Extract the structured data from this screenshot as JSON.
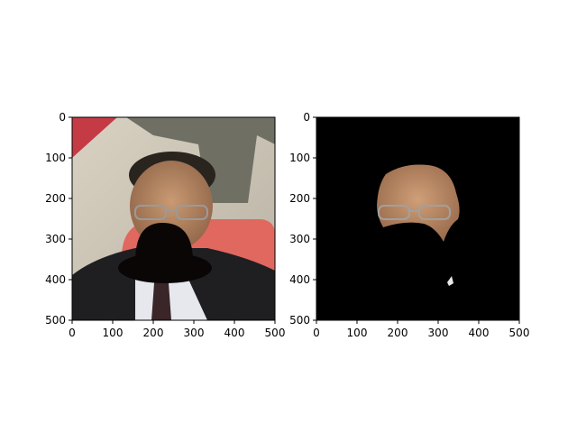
{
  "figure": {
    "background": "#ffffff",
    "axis_color": "#000000"
  },
  "panels": [
    {
      "name": "left-panel",
      "content": "photo of man in suit with black hat shape covering lower face",
      "x_ticks": [
        "0",
        "100",
        "200",
        "300",
        "400",
        "500"
      ],
      "y_ticks": [
        "0",
        "100",
        "200",
        "300",
        "400",
        "500"
      ]
    },
    {
      "name": "right-panel",
      "content": "segmented face region on black background",
      "x_ticks": [
        "0",
        "100",
        "200",
        "300",
        "400",
        "500"
      ],
      "y_ticks": [
        "0",
        "100",
        "200",
        "300",
        "400",
        "500"
      ]
    }
  ]
}
